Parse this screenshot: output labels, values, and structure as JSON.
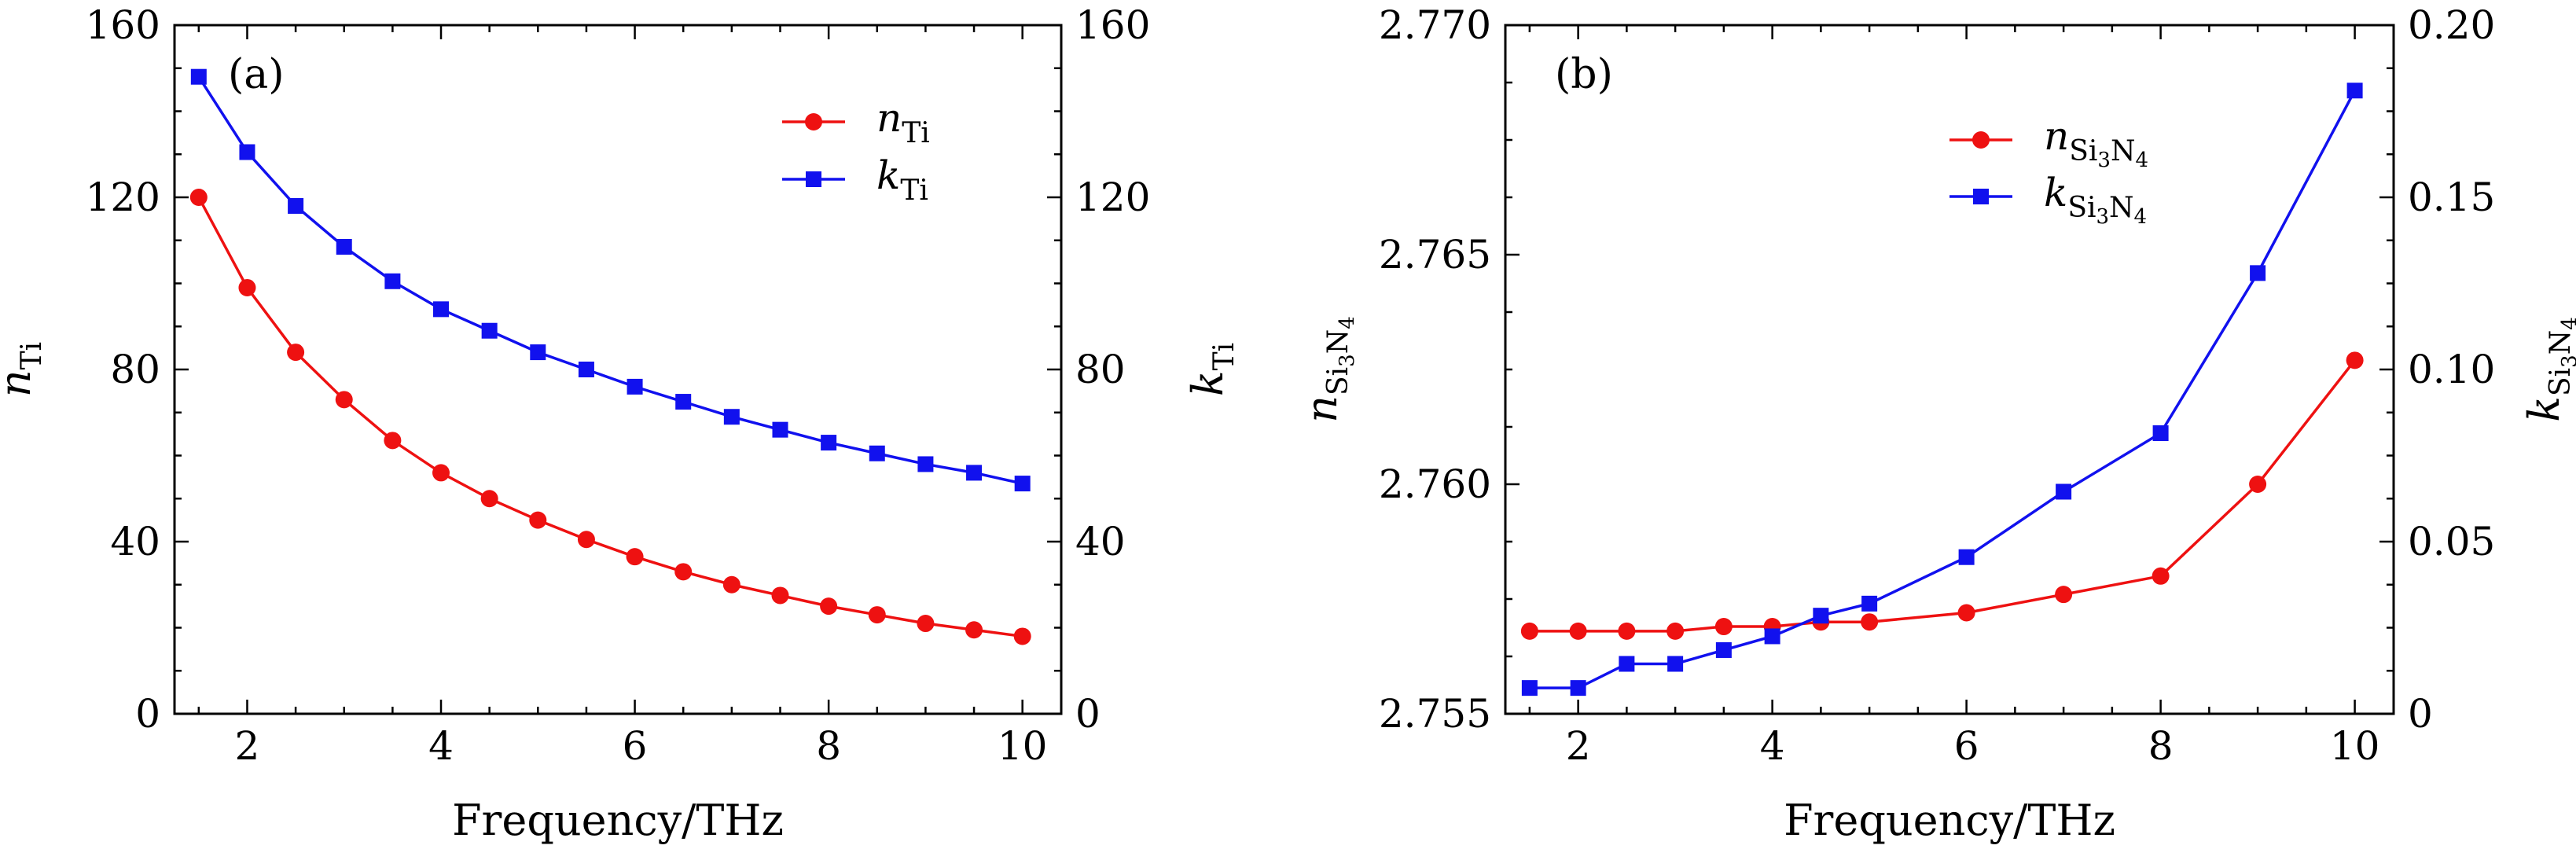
{
  "chart_data": [
    {
      "type": "line",
      "panel_label": "(a)",
      "xlabel": "Frequency/THz",
      "xlim": [
        1.25,
        10.4
      ],
      "x_ticks": [
        2,
        4,
        6,
        8,
        10
      ],
      "x_tick_labels": [
        "2",
        "4",
        "6",
        "8",
        "10"
      ],
      "ylabel_left": {
        "symbol": "n",
        "sub": "Ti"
      },
      "ylabel_right": {
        "symbol": "k",
        "sub": "Ti"
      },
      "ylim_left": [
        0,
        160
      ],
      "ylim_right": [
        0,
        160
      ],
      "y_ticks_left": [
        0,
        40,
        80,
        120,
        160
      ],
      "y_tick_labels_left": [
        "0",
        "40",
        "80",
        "120",
        "160"
      ],
      "y_ticks_right": [
        0,
        40,
        80,
        120,
        160
      ],
      "y_tick_labels_right": [
        "0",
        "40",
        "80",
        "120",
        "160"
      ],
      "legend_position": "top-right",
      "x": [
        1.5,
        2.0,
        2.5,
        3.0,
        3.5,
        4.0,
        4.5,
        5.0,
        5.5,
        6.0,
        6.5,
        7.0,
        7.5,
        8.0,
        8.5,
        9.0,
        9.5,
        10.0
      ],
      "series": [
        {
          "name": "n_Ti",
          "symbol": "n",
          "sub": "Ti",
          "axis": "left",
          "color": "#ee1111",
          "marker": "circle",
          "values": [
            120,
            99,
            84,
            73,
            63.5,
            56,
            50,
            45,
            40.5,
            36.5,
            33,
            30,
            27.5,
            25,
            23,
            21,
            19.5,
            18
          ]
        },
        {
          "name": "k_Ti",
          "symbol": "k",
          "sub": "Ti",
          "axis": "right",
          "color": "#1111ee",
          "marker": "square",
          "values": [
            148,
            130.5,
            118,
            108.5,
            100.5,
            94,
            89,
            84,
            80,
            76,
            72.5,
            69,
            66,
            63,
            60.5,
            58,
            56,
            53.5
          ]
        }
      ]
    },
    {
      "type": "line",
      "panel_label": "(b)",
      "xlabel": "Frequency/THz",
      "xlim": [
        1.25,
        10.4
      ],
      "x_ticks": [
        2,
        4,
        6,
        8,
        10
      ],
      "x_tick_labels": [
        "2",
        "4",
        "6",
        "8",
        "10"
      ],
      "ylabel_left": {
        "symbol": "n",
        "sub": "Si3N4"
      },
      "ylabel_right": {
        "symbol": "k",
        "sub": "Si3N4"
      },
      "ylim_left": [
        2.755,
        2.77
      ],
      "ylim_right": [
        0,
        0.2
      ],
      "y_ticks_left": [
        2.755,
        2.76,
        2.765,
        2.77
      ],
      "y_tick_labels_left": [
        "2.755",
        "2.760",
        "2.765",
        "2.770"
      ],
      "y_ticks_right": [
        0,
        0.05,
        0.1,
        0.15,
        0.2
      ],
      "y_tick_labels_right": [
        "0",
        "0.05",
        "0.10",
        "0.15",
        "0.20"
      ],
      "legend_position": "top-right",
      "x": [
        1.5,
        2.0,
        2.5,
        3.0,
        3.5,
        4.0,
        4.5,
        5.0,
        6.0,
        7.0,
        8.0,
        9.0,
        10.0
      ],
      "series": [
        {
          "name": "n_Si3N4",
          "symbol": "n",
          "sub": "Si3N4",
          "axis": "left",
          "color": "#ee1111",
          "marker": "circle",
          "values": [
            2.7568,
            2.7568,
            2.7568,
            2.7568,
            2.7569,
            2.7569,
            2.757,
            2.757,
            2.7572,
            2.7576,
            2.758,
            2.76,
            2.7627
          ]
        },
        {
          "name": "k_Si3N4",
          "symbol": "k",
          "sub": "Si3N4",
          "axis": "right",
          "color": "#1111ee",
          "marker": "square",
          "values": [
            0.0075,
            0.0075,
            0.0145,
            0.0145,
            0.0185,
            0.0225,
            0.0285,
            0.032,
            0.0455,
            0.0645,
            0.0815,
            0.128,
            0.181
          ]
        }
      ]
    }
  ]
}
